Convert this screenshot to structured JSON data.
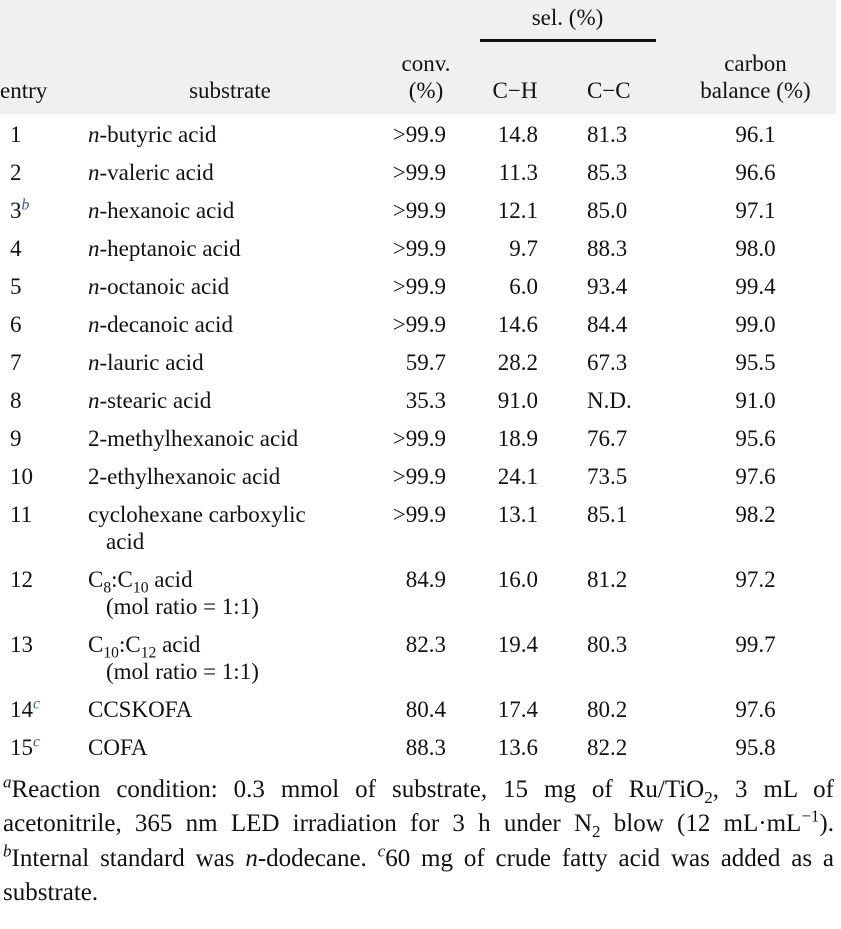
{
  "table": {
    "header": {
      "sel": "sel. (%)",
      "entry": "entry",
      "substrate": "substrate",
      "conv": [
        "conv.",
        "(%)"
      ],
      "ch": "C−H",
      "cc": "C−C",
      "carbon": [
        "carbon",
        "balance (%)"
      ]
    },
    "rows": [
      {
        "entry": "1",
        "substrate": [
          [
            {
              "text": "n",
              "style": "italic"
            },
            "-butyric acid"
          ]
        ],
        "conv": ">99.9",
        "ch": "14.8",
        "cc": "81.3",
        "carbon": "96.1"
      },
      {
        "entry": "2",
        "substrate": [
          [
            {
              "text": "n",
              "style": "italic"
            },
            "-valeric acid"
          ]
        ],
        "conv": ">99.9",
        "ch": "11.3",
        "cc": "85.3",
        "carbon": "96.6"
      },
      {
        "entry": "3",
        "note": "b",
        "substrate": [
          [
            {
              "text": "n",
              "style": "italic"
            },
            "-hexanoic acid"
          ]
        ],
        "conv": ">99.9",
        "ch": "12.1",
        "cc": "85.0",
        "carbon": "97.1"
      },
      {
        "entry": "4",
        "substrate": [
          [
            {
              "text": "n",
              "style": "italic"
            },
            "-heptanoic acid"
          ]
        ],
        "conv": ">99.9",
        "ch": "9.7",
        "cc": "88.3",
        "carbon": "98.0"
      },
      {
        "entry": "5",
        "substrate": [
          [
            {
              "text": "n",
              "style": "italic"
            },
            "-octanoic acid"
          ]
        ],
        "conv": ">99.9",
        "ch": "6.0",
        "cc": "93.4",
        "carbon": "99.4"
      },
      {
        "entry": "6",
        "substrate": [
          [
            {
              "text": "n",
              "style": "italic"
            },
            "-decanoic acid"
          ]
        ],
        "conv": ">99.9",
        "ch": "14.6",
        "cc": "84.4",
        "carbon": "99.0"
      },
      {
        "entry": "7",
        "substrate": [
          [
            {
              "text": "n",
              "style": "italic"
            },
            "-lauric acid"
          ]
        ],
        "conv": "59.7",
        "ch": "28.2",
        "cc": "67.3",
        "carbon": "95.5"
      },
      {
        "entry": "8",
        "substrate": [
          [
            {
              "text": "n",
              "style": "italic"
            },
            "-stearic acid"
          ]
        ],
        "conv": "35.3",
        "ch": "91.0",
        "cc": "N.D.",
        "carbon": "91.0"
      },
      {
        "entry": "9",
        "substrate": [
          [
            "2-methylhexanoic acid"
          ]
        ],
        "conv": ">99.9",
        "ch": "18.9",
        "cc": "76.7",
        "carbon": "95.6"
      },
      {
        "entry": "10",
        "substrate": [
          [
            "2-ethylhexanoic acid"
          ]
        ],
        "conv": ">99.9",
        "ch": "24.1",
        "cc": "73.5",
        "carbon": "97.6"
      },
      {
        "entry": "11",
        "substrate": [
          [
            "cyclohexane carboxylic"
          ],
          [
            "acid"
          ]
        ],
        "conv": ">99.9",
        "ch": "13.1",
        "cc": "85.1",
        "carbon": "98.2"
      },
      {
        "entry": "12",
        "substrate": [
          [
            "C",
            {
              "text": "8",
              "style": "sub"
            },
            ":C",
            {
              "text": "10",
              "style": "sub"
            },
            " acid"
          ],
          [
            "(mol ratio = 1:1)"
          ]
        ],
        "conv": "84.9",
        "ch": "16.0",
        "cc": "81.2",
        "carbon": "97.2"
      },
      {
        "entry": "13",
        "substrate": [
          [
            "C",
            {
              "text": "10",
              "style": "sub"
            },
            ":C",
            {
              "text": "12",
              "style": "sub"
            },
            " acid"
          ],
          [
            "(mol ratio = 1:1)"
          ]
        ],
        "conv": "82.3",
        "ch": "19.4",
        "cc": "80.3",
        "carbon": "99.7"
      },
      {
        "entry": "14",
        "note": "c",
        "substrate": [
          [
            "CCSKOFA"
          ]
        ],
        "conv": "80.4",
        "ch": "17.4",
        "cc": "80.2",
        "carbon": "97.6"
      },
      {
        "entry": "15",
        "note": "c",
        "substrate": [
          [
            "COFA"
          ]
        ],
        "conv": "88.3",
        "ch": "13.6",
        "cc": "82.2",
        "carbon": "95.8"
      }
    ]
  },
  "footnote": [
    {
      "text": "a",
      "style": "sup-i"
    },
    "Reaction condition: 0.3 mmol of substrate, 15 mg of Ru/TiO",
    {
      "text": "2",
      "style": "sub"
    },
    ", 3 mL of acetonitrile, 365 nm LED irradiation for 3 h under N",
    {
      "text": "2",
      "style": "sub"
    },
    " blow (12 mL·mL",
    {
      "text": "−1",
      "style": "sup"
    },
    "). ",
    {
      "text": "b",
      "style": "sup-i"
    },
    "Internal standard was ",
    {
      "text": "n",
      "style": "italic"
    },
    "-dodecane. ",
    {
      "text": "c",
      "style": "sup-i"
    },
    "60 mg of crude fatty acid was added as a substrate."
  ]
}
